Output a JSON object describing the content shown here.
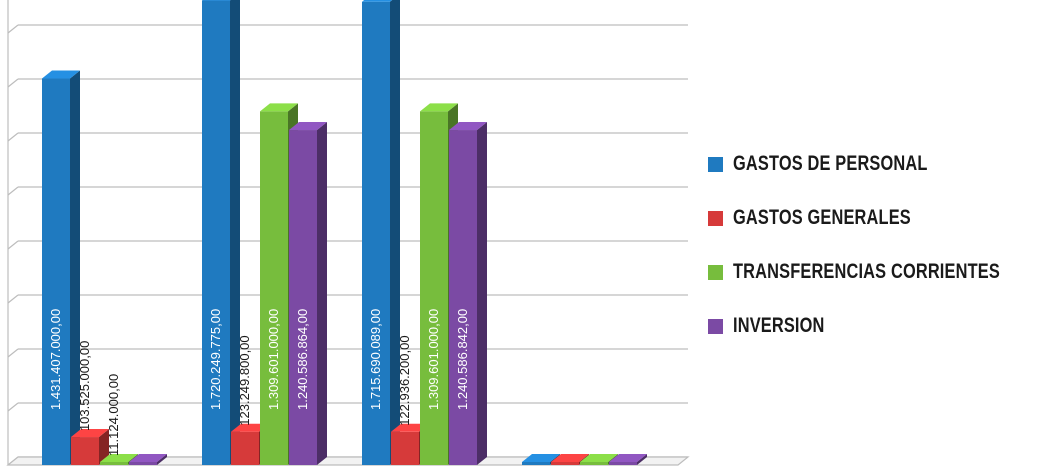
{
  "chart_data": {
    "type": "bar",
    "title": "",
    "xlabel": "",
    "ylabel": "",
    "categories": [
      "",
      "",
      "",
      ""
    ],
    "ylim": [
      0,
      1800000000
    ],
    "grid": true,
    "three_d": true,
    "legend_position": "right",
    "series": [
      {
        "name": "GASTOS DE PERSONAL",
        "color": "#1f7ac0",
        "values": [
          1431407000,
          1720249775,
          1715690089,
          0
        ],
        "labels": [
          "1.431.407.000,00",
          "1.720.249.775,00",
          "1.715.690.089,00",
          ""
        ]
      },
      {
        "name": "GASTOS GENERALES",
        "color": "#d63a3a",
        "values": [
          103525000,
          123249800,
          122936200,
          0
        ],
        "labels": [
          "103.525.000,00",
          "123.249.800,00",
          "122.936.200,00",
          ""
        ]
      },
      {
        "name": "TRANSFERENCIAS CORRIENTES",
        "color": "#77bd3d",
        "values": [
          11124000,
          1309601000,
          1309601000,
          0
        ],
        "labels": [
          "11.124.000,00",
          "1.309.601.000,00",
          "1.309.601.000,00",
          ""
        ]
      },
      {
        "name": "INVERSION",
        "color": "#7b4aa4",
        "values": [
          0,
          1240586864,
          1240586842,
          0
        ],
        "labels": [
          "",
          "1.240.586.864,00",
          "1.240.586.842,00",
          ""
        ]
      }
    ]
  }
}
